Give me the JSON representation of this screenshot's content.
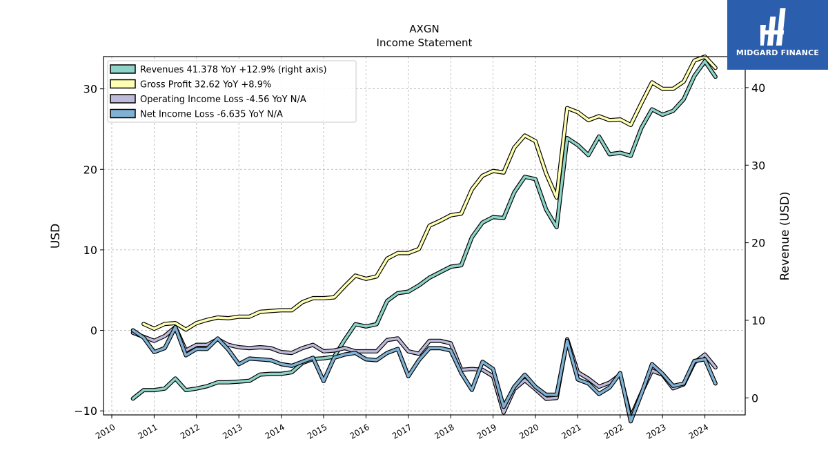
{
  "chart_data": {
    "type": "line",
    "title": "AXGN",
    "subtitle": "Income Statement",
    "ylabel": "USD",
    "ylabel_right": "Revenue (USD)",
    "x_ticks": [
      "2010",
      "2011",
      "2012",
      "2013",
      "2014",
      "2015",
      "2016",
      "2017",
      "2018",
      "2019",
      "2020",
      "2021",
      "2022",
      "2023",
      "2024"
    ],
    "ylim_left": [
      -10.5,
      34
    ],
    "yticks_left": [
      -10,
      0,
      10,
      20,
      30
    ],
    "ylim_right": [
      -2.2,
      44
    ],
    "yticks_right": [
      0,
      10,
      20,
      30,
      40
    ],
    "grid": true,
    "legend_position": "top-left",
    "series": [
      {
        "name": "Revenues",
        "legend_label": "Revenues  41.378 YoY +12.9% (right axis)",
        "color": "#8dd3c7",
        "axis": "right",
        "x": [
          2010.5,
          2010.75,
          2011.0,
          2011.25,
          2011.5,
          2011.75,
          2012.0,
          2012.25,
          2012.5,
          2012.75,
          2013.0,
          2013.25,
          2013.5,
          2013.75,
          2014.0,
          2014.25,
          2014.5,
          2014.75,
          2015.0,
          2015.25,
          2015.5,
          2015.75,
          2016.0,
          2016.25,
          2016.5,
          2016.75,
          2017.0,
          2017.25,
          2017.5,
          2017.75,
          2018.0,
          2018.25,
          2018.5,
          2018.75,
          2019.0,
          2019.25,
          2019.5,
          2019.75,
          2020.0,
          2020.25,
          2020.5,
          2020.75,
          2021.0,
          2021.25,
          2021.5,
          2021.75,
          2022.0,
          2022.25,
          2022.5,
          2022.75,
          2023.0,
          2023.25,
          2023.5,
          2023.75,
          2024.0,
          2024.25
        ],
        "values": [
          -0.1,
          1.0,
          1.0,
          1.2,
          2.5,
          1.0,
          1.2,
          1.5,
          2.0,
          2.0,
          2.1,
          2.2,
          3.0,
          3.1,
          3.1,
          3.3,
          4.5,
          5.0,
          5.1,
          5.3,
          7.5,
          9.5,
          9.2,
          9.5,
          12.5,
          13.5,
          13.7,
          14.5,
          15.5,
          16.2,
          16.9,
          17.1,
          20.7,
          22.6,
          23.3,
          23.2,
          26.5,
          28.5,
          28.2,
          24.3,
          22.0,
          33.5,
          32.6,
          31.3,
          33.7,
          31.4,
          31.6,
          31.2,
          34.8,
          37.2,
          36.5,
          37.0,
          38.5,
          41.5,
          43.4,
          41.4
        ]
      },
      {
        "name": "Gross Profit",
        "legend_label": "Gross Profit  32.62 YoY +8.9%",
        "color": "#ffffb3",
        "axis": "left",
        "x": [
          2010.75,
          2011.0,
          2011.25,
          2011.5,
          2011.75,
          2012.0,
          2012.25,
          2012.5,
          2012.75,
          2013.0,
          2013.25,
          2013.5,
          2013.75,
          2014.0,
          2014.25,
          2014.5,
          2014.75,
          2015.0,
          2015.25,
          2015.5,
          2015.75,
          2016.0,
          2016.25,
          2016.5,
          2016.75,
          2017.0,
          2017.25,
          2017.5,
          2017.75,
          2018.0,
          2018.25,
          2018.5,
          2018.75,
          2019.0,
          2019.25,
          2019.5,
          2019.75,
          2020.0,
          2020.25,
          2020.5,
          2020.75,
          2021.0,
          2021.25,
          2021.5,
          2021.75,
          2022.0,
          2022.25,
          2022.5,
          2022.75,
          2023.0,
          2023.25,
          2023.5,
          2023.75,
          2024.0,
          2024.25
        ],
        "values": [
          0.8,
          0.2,
          0.8,
          0.9,
          0.1,
          0.9,
          1.3,
          1.6,
          1.5,
          1.7,
          1.7,
          2.3,
          2.4,
          2.5,
          2.5,
          3.5,
          4.0,
          4.0,
          4.1,
          5.5,
          6.8,
          6.4,
          6.7,
          8.9,
          9.6,
          9.6,
          10.1,
          13.0,
          13.6,
          14.3,
          14.5,
          17.5,
          19.2,
          19.8,
          19.6,
          22.7,
          24.2,
          23.5,
          19.5,
          16.5,
          27.6,
          27.1,
          26.1,
          26.6,
          26.1,
          26.2,
          25.5,
          28.2,
          30.8,
          30.0,
          30.0,
          30.9,
          33.5,
          34.0,
          32.6
        ]
      },
      {
        "name": "Operating Income Loss",
        "legend_label": "Operating Income Loss  -4.56 YoY N/A",
        "color": "#bebada",
        "axis": "left",
        "x": [
          2010.5,
          2010.75,
          2011.0,
          2011.25,
          2011.5,
          2011.75,
          2012.0,
          2012.25,
          2012.5,
          2012.75,
          2013.0,
          2013.25,
          2013.5,
          2013.75,
          2014.0,
          2014.25,
          2014.5,
          2014.75,
          2015.0,
          2015.25,
          2015.5,
          2015.75,
          2016.0,
          2016.25,
          2016.5,
          2016.75,
          2017.0,
          2017.25,
          2017.5,
          2017.75,
          2018.0,
          2018.25,
          2018.5,
          2018.75,
          2019.0,
          2019.25,
          2019.5,
          2019.75,
          2020.0,
          2020.25,
          2020.5,
          2020.75,
          2021.0,
          2021.25,
          2021.5,
          2021.75,
          2022.0,
          2022.25,
          2022.5,
          2022.75,
          2023.0,
          2023.25,
          2023.5,
          2023.75,
          2024.0,
          2024.25
        ],
        "values": [
          -0.3,
          -0.8,
          -1.3,
          -0.7,
          0.4,
          -2.5,
          -1.8,
          -1.8,
          -1.1,
          -1.8,
          -2.1,
          -2.2,
          -2.1,
          -2.2,
          -2.7,
          -2.8,
          -2.2,
          -1.8,
          -2.6,
          -2.5,
          -2.2,
          -2.6,
          -2.6,
          -2.6,
          -1.2,
          -1.0,
          -2.6,
          -2.9,
          -1.3,
          -1.3,
          -1.6,
          -4.9,
          -4.8,
          -4.9,
          -5.7,
          -10.2,
          -7.3,
          -6.2,
          -7.3,
          -8.5,
          -8.4,
          -1.1,
          -5.2,
          -6.0,
          -7.0,
          -6.5,
          -5.5,
          -10.8,
          -7.8,
          -5.0,
          -5.5,
          -7.2,
          -6.7,
          -4.0,
          -3.0,
          -4.6
        ]
      },
      {
        "name": "Net Income Loss",
        "legend_label": "Net Income Loss  -6.635 YoY N/A",
        "color": "#80b1d3",
        "axis": "left",
        "x": [
          2010.5,
          2010.75,
          2011.0,
          2011.25,
          2011.5,
          2011.75,
          2012.0,
          2012.25,
          2012.5,
          2012.75,
          2013.0,
          2013.25,
          2013.5,
          2013.75,
          2014.0,
          2014.25,
          2014.5,
          2014.75,
          2015.0,
          2015.25,
          2015.5,
          2015.75,
          2016.0,
          2016.25,
          2016.5,
          2016.75,
          2017.0,
          2017.25,
          2017.5,
          2017.75,
          2018.0,
          2018.25,
          2018.5,
          2018.75,
          2019.0,
          2019.25,
          2019.5,
          2019.75,
          2020.0,
          2020.25,
          2020.5,
          2020.75,
          2021.0,
          2021.25,
          2021.5,
          2021.75,
          2022.0,
          2022.25,
          2022.5,
          2022.75,
          2023.0,
          2023.25,
          2023.5,
          2023.75,
          2024.0,
          2024.25
        ],
        "values": [
          0.0,
          -0.9,
          -2.7,
          -2.2,
          0.4,
          -3.1,
          -2.3,
          -2.3,
          -1.0,
          -2.4,
          -4.2,
          -3.5,
          -3.6,
          -3.7,
          -4.2,
          -4.4,
          -3.9,
          -3.4,
          -6.3,
          -3.4,
          -3.0,
          -2.8,
          -3.6,
          -3.7,
          -2.8,
          -2.3,
          -5.7,
          -3.7,
          -2.2,
          -2.2,
          -2.5,
          -5.3,
          -7.4,
          -3.9,
          -4.8,
          -9.5,
          -7.0,
          -5.5,
          -7.0,
          -8.0,
          -8.0,
          -1.3,
          -6.1,
          -6.6,
          -7.9,
          -7.1,
          -5.3,
          -11.3,
          -7.9,
          -4.2,
          -5.4,
          -6.9,
          -6.6,
          -3.8,
          -3.6,
          -6.6
        ]
      }
    ]
  },
  "watermark": {
    "text": "MIDGARD FINANCE",
    "background": "#2b5fae"
  }
}
